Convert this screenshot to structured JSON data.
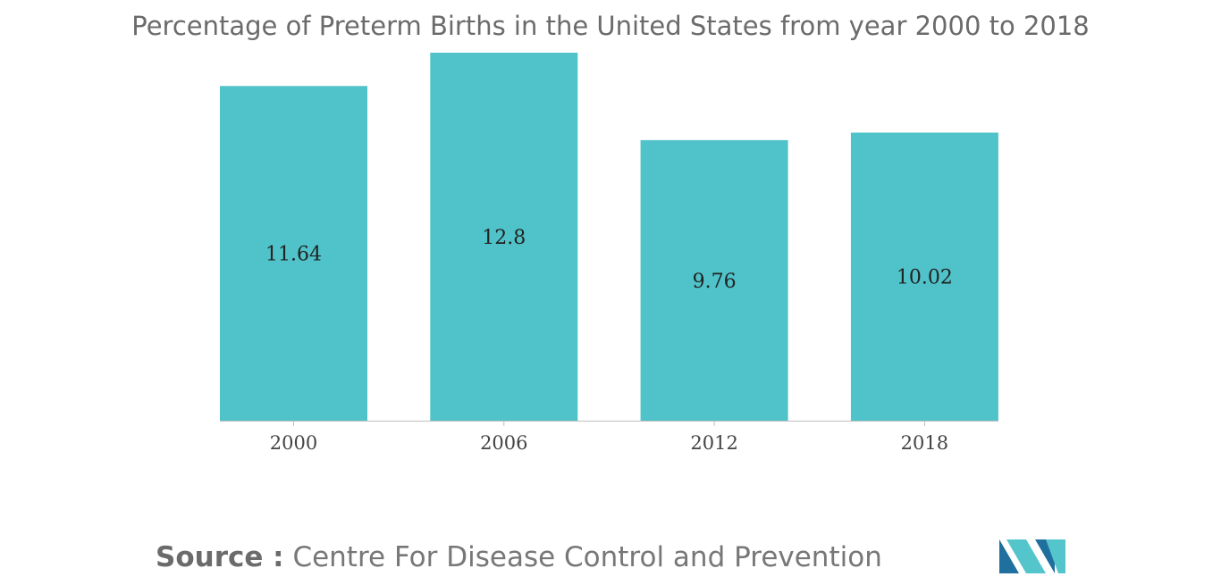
{
  "chart_data": {
    "type": "bar",
    "title": "Percentage of Preterm Births in the United States from year 2000 to 2018",
    "categories": [
      "2000",
      "2006",
      "2012",
      "2018"
    ],
    "values": [
      11.64,
      12.8,
      9.76,
      10.02
    ],
    "data_labels": [
      "11.64",
      "12.8",
      "9.76",
      "10.02"
    ],
    "xlabel": "",
    "ylabel": "",
    "grid": false,
    "legend": "none"
  },
  "source": {
    "label": "Source :",
    "value": "Centre For Disease Control and Prevention"
  },
  "colors": {
    "bar": "#4fc3c9",
    "axis": "#bfbfbf",
    "title": "#6b6b6b",
    "logo_dark": "#1f6f9f",
    "logo_light": "#55c5cc"
  },
  "logo": {
    "icon": "company-logo-icon"
  }
}
